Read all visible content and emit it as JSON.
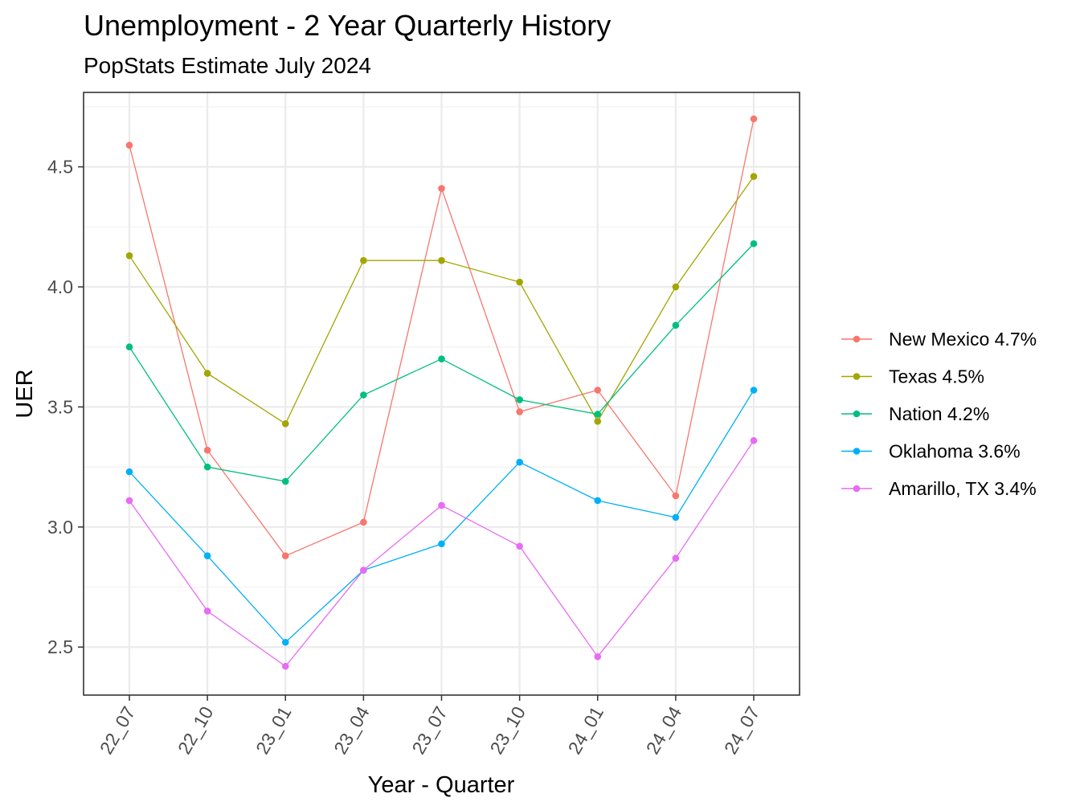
{
  "chart_data": {
    "type": "line",
    "title": "Unemployment - 2 Year Quarterly History",
    "subtitle": "PopStats Estimate July 2024",
    "xlabel": "Year - Quarter",
    "ylabel": "UER",
    "categories": [
      "22_07",
      "22_10",
      "23_01",
      "23_04",
      "23_07",
      "23_10",
      "24_01",
      "24_04",
      "24_07"
    ],
    "ylim": [
      2.3,
      4.81
    ],
    "yticks": [
      "2.5",
      "3.0",
      "3.5",
      "4.0",
      "4.5"
    ],
    "grid": true,
    "legend_position": "right",
    "series": [
      {
        "name": "New Mexico 4.7%",
        "color": "#F8766D",
        "values": [
          4.59,
          3.32,
          2.88,
          3.02,
          4.41,
          3.48,
          3.57,
          3.13,
          4.7
        ]
      },
      {
        "name": "Texas 4.5%",
        "color": "#A3A500",
        "values": [
          4.13,
          3.64,
          3.43,
          4.11,
          4.11,
          4.02,
          3.44,
          4.0,
          4.46
        ]
      },
      {
        "name": "Nation 4.2%",
        "color": "#00BF7D",
        "values": [
          3.75,
          3.25,
          3.19,
          3.55,
          3.7,
          3.53,
          3.47,
          3.84,
          4.18
        ]
      },
      {
        "name": "Oklahoma 3.6%",
        "color": "#00B0F6",
        "values": [
          3.23,
          2.88,
          2.52,
          2.82,
          2.93,
          3.27,
          3.11,
          3.04,
          3.57
        ]
      },
      {
        "name": "Amarillo, TX 3.4%",
        "color": "#E76BF3",
        "values": [
          3.11,
          2.65,
          2.42,
          2.82,
          3.09,
          2.92,
          2.46,
          2.87,
          3.36
        ]
      }
    ]
  }
}
